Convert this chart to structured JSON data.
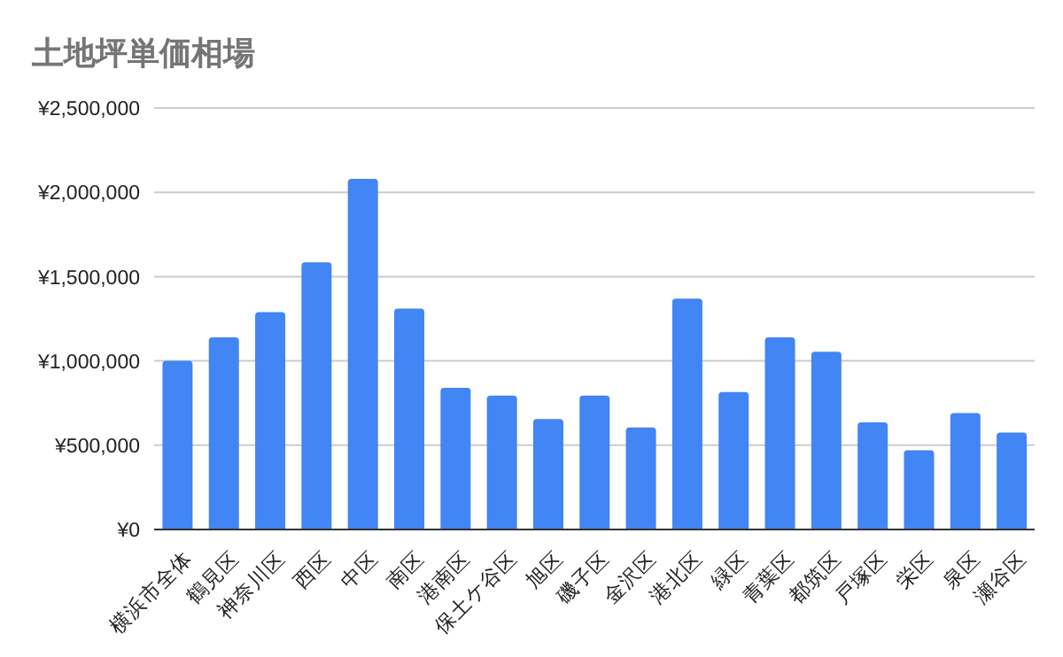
{
  "chart_data": {
    "type": "bar",
    "title": "土地坪単価相場",
    "categories": [
      "横浜市全体",
      "鶴見区",
      "神奈川区",
      "西区",
      "中区",
      "南区",
      "港南区",
      "保土ケ谷区",
      "旭区",
      "磯子区",
      "金沢区",
      "港北区",
      "緑区",
      "青葉区",
      "都筑区",
      "戸塚区",
      "栄区",
      "泉区",
      "瀬谷区"
    ],
    "values": [
      1000000,
      1140000,
      1290000,
      1585000,
      2080000,
      1310000,
      840000,
      795000,
      655000,
      795000,
      605000,
      1370000,
      815000,
      1140000,
      1055000,
      635000,
      470000,
      690000,
      575000
    ],
    "color": "#4285f4",
    "ylim": [
      0,
      2500000
    ],
    "yticks": [
      {
        "value": 0,
        "label": "¥0"
      },
      {
        "value": 500000,
        "label": "¥500,000"
      },
      {
        "value": 1000000,
        "label": "¥1,000,000"
      },
      {
        "value": 1500000,
        "label": "¥1,500,000"
      },
      {
        "value": 2000000,
        "label": "¥2,000,000"
      },
      {
        "value": 2500000,
        "label": "¥2,500,000"
      }
    ],
    "grid": "y"
  }
}
